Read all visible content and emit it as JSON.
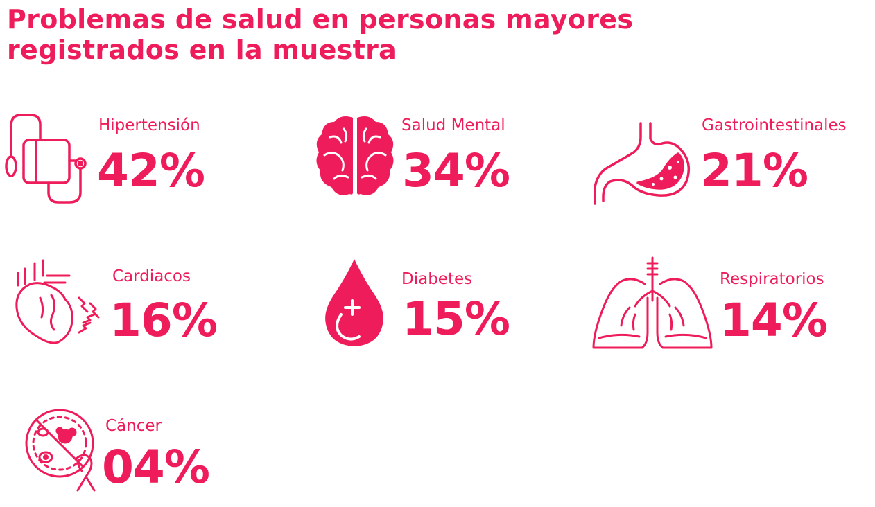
{
  "title_line1": "Problemas de salud en personas mayores",
  "title_line2": "registrados en la muestra",
  "accent_color": "#ee1c5a",
  "items": [
    {
      "label": "Hipertensión",
      "value": "42%",
      "icon": "blood-pressure-monitor-icon"
    },
    {
      "label": "Salud Mental",
      "value": "34%",
      "icon": "brain-icon"
    },
    {
      "label": "Gastrointestinales",
      "value": "21%",
      "icon": "stomach-icon"
    },
    {
      "label": "Cardiacos",
      "value": "16%",
      "icon": "heart-icon"
    },
    {
      "label": "Diabetes",
      "value": "15%",
      "icon": "blood-drop-icon"
    },
    {
      "label": "Respiratorios",
      "value": "14%",
      "icon": "lungs-icon"
    },
    {
      "label": "Cáncer",
      "value": "04%",
      "icon": "cancer-ribbon-icon"
    }
  ]
}
